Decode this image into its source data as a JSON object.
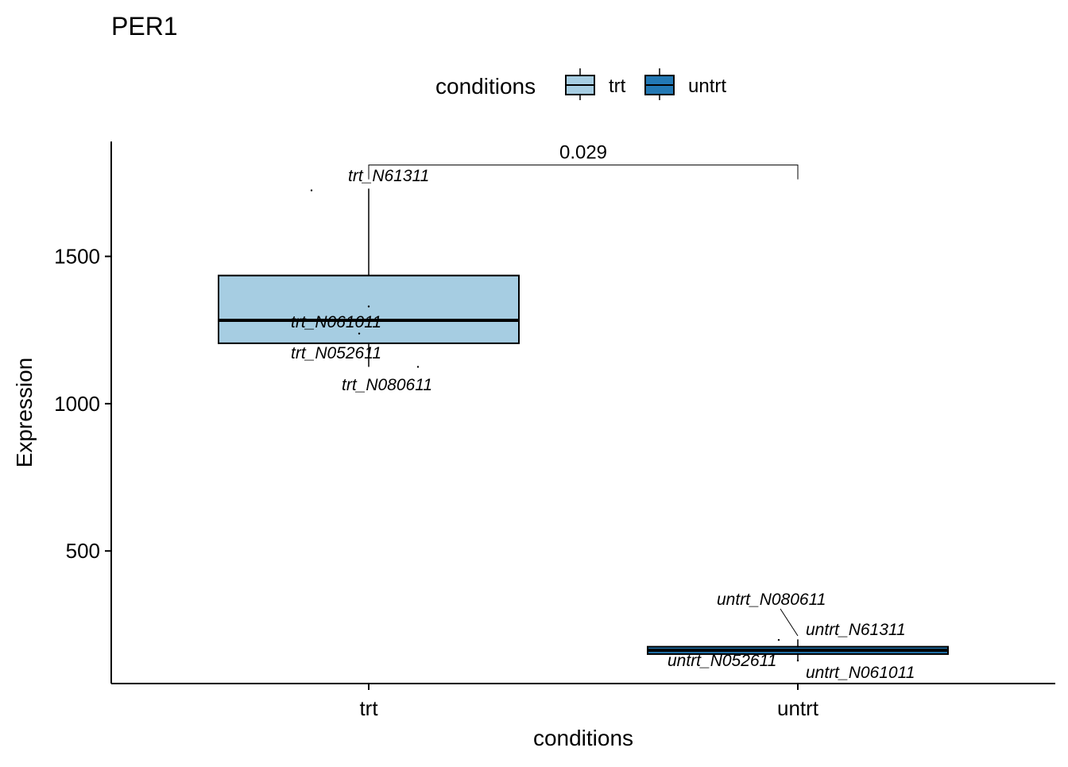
{
  "chart_data": {
    "type": "boxplot",
    "title": "PER1",
    "xlabel": "conditions",
    "ylabel": "Expression",
    "ylim": [
      50,
      1890
    ],
    "yticks": [
      500,
      1000,
      1500
    ],
    "categories": [
      "trt",
      "untrt"
    ],
    "legend": {
      "title": "conditions",
      "placement": "top",
      "items": [
        {
          "label": "trt",
          "color": "#a6cde2"
        },
        {
          "label": "untrt",
          "color": "#2278b4"
        }
      ]
    },
    "boxes": [
      {
        "category": "trt",
        "color": "#a6cde2",
        "q1": 1205,
        "median": 1283,
        "q3": 1435,
        "whisker_low": 1125,
        "whisker_high": 1730
      },
      {
        "category": "untrt",
        "color": "#2278b4",
        "q1": 150,
        "median": 163,
        "q3": 175,
        "whisker_low": 128,
        "whisker_high": 200
      }
    ],
    "points": [
      {
        "category": "trt",
        "label": "trt_N61311",
        "value": 1724
      },
      {
        "category": "trt",
        "label": "trt_N061011",
        "value": 1330
      },
      {
        "category": "trt",
        "label": "trt_N052611",
        "value": 1238
      },
      {
        "category": "trt",
        "label": "trt_N080611",
        "value": 1125
      },
      {
        "category": "untrt",
        "label": "untrt_N080611",
        "value": 198
      },
      {
        "category": "untrt",
        "label": "untrt_N61311",
        "value": 175
      },
      {
        "category": "untrt",
        "label": "untrt_N052611",
        "value": 150
      },
      {
        "category": "untrt",
        "label": "untrt_N061011",
        "value": 128
      }
    ],
    "comparison": {
      "groups": [
        "trt",
        "untrt"
      ],
      "p_value": "0.029",
      "value": 1810
    },
    "grid": false
  }
}
